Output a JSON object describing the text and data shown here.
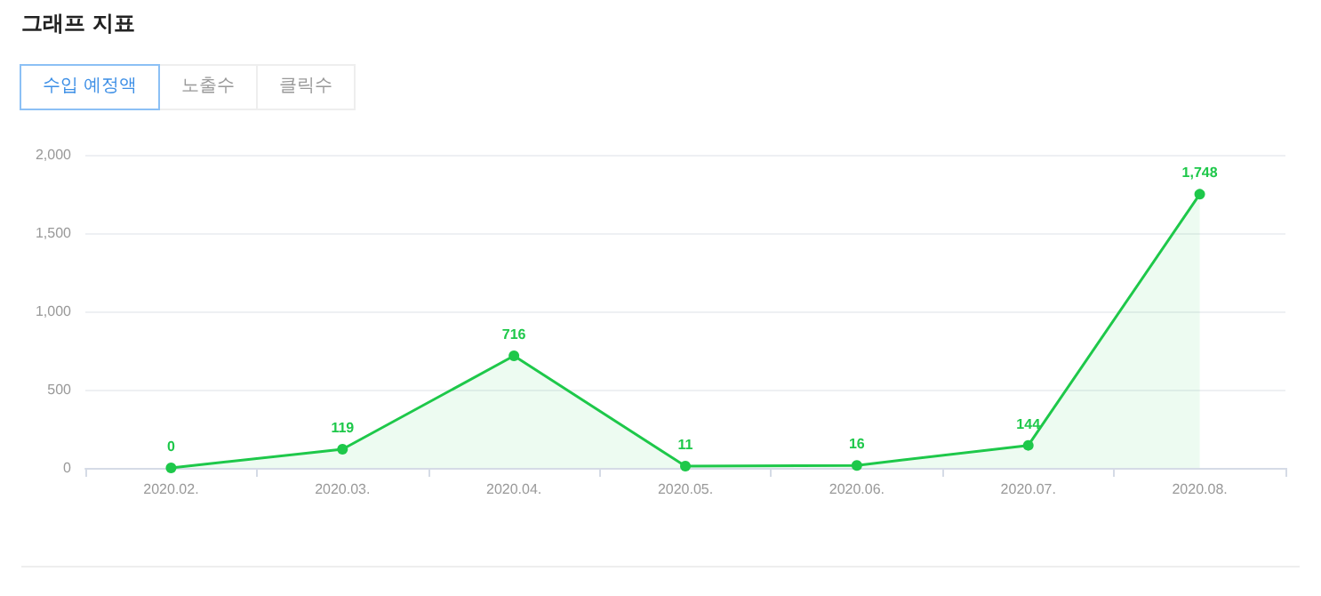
{
  "chart_data": {
    "type": "area",
    "title": "그래프 지표",
    "annotations": [
      "수입 예정액",
      "노출수",
      "클릭수"
    ],
    "categories": [
      "2020.02.",
      "2020.03.",
      "2020.04.",
      "2020.05.",
      "2020.06.",
      "2020.07.",
      "2020.08."
    ],
    "series": [
      {
        "color": "#1ec84a",
        "values": [
          0,
          119,
          716,
          11,
          16,
          144,
          1748
        ],
        "value_labels": [
          "0",
          "119",
          "716",
          "11",
          "16",
          "144",
          "1,748"
        ]
      }
    ],
    "ylim": [
      0,
      2000
    ],
    "yticks": [
      0,
      500,
      {
        "value": 1000,
        "label": "1,000"
      },
      {
        "value": 1500,
        "label": "1,500"
      },
      {
        "value": 2000,
        "label": "2,000"
      }
    ],
    "grid": "y",
    "marker": "circle"
  }
}
